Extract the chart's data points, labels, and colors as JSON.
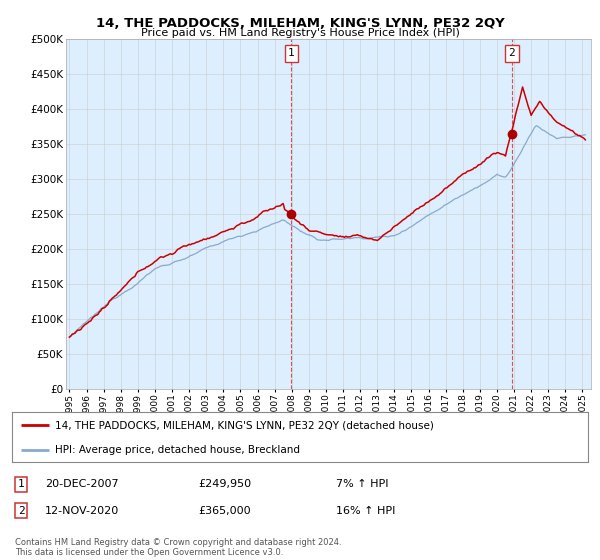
{
  "title": "14, THE PADDOCKS, MILEHAM, KING'S LYNN, PE32 2QY",
  "subtitle": "Price paid vs. HM Land Registry's House Price Index (HPI)",
  "legend_line1": "14, THE PADDOCKS, MILEHAM, KING'S LYNN, PE32 2QY (detached house)",
  "legend_line2": "HPI: Average price, detached house, Breckland",
  "footer": "Contains HM Land Registry data © Crown copyright and database right 2024.\nThis data is licensed under the Open Government Licence v3.0.",
  "sale1_date": "20-DEC-2007",
  "sale1_price": "£249,950",
  "sale1_hpi": "7% ↑ HPI",
  "sale1_x": 2007.97,
  "sale1_y": 249950,
  "sale2_date": "12-NOV-2020",
  "sale2_price": "£365,000",
  "sale2_hpi": "16% ↑ HPI",
  "sale2_x": 2020.87,
  "sale2_y": 365000,
  "red_color": "#cc0000",
  "blue_color": "#88aacc",
  "bg_color": "#ddeeff",
  "marker_box_color": "#cc3333",
  "grid_color": "#cccccc",
  "ylim": [
    0,
    500000
  ],
  "xlim_min": 1994.8,
  "xlim_max": 2025.5
}
